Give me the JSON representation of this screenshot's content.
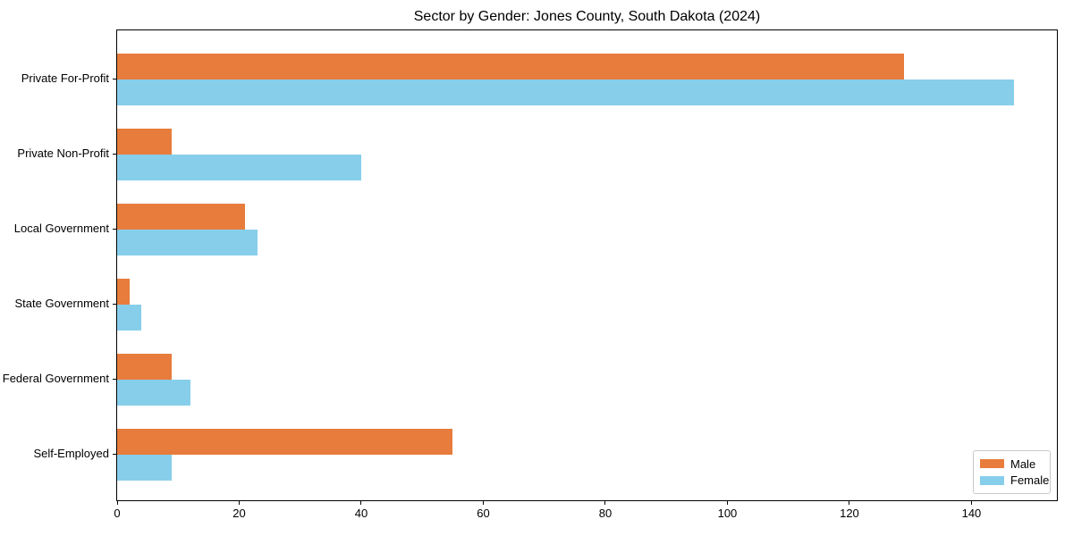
{
  "chart_data": {
    "type": "bar",
    "orientation": "horizontal",
    "title": "Sector by Gender: Jones County, South Dakota (2024)",
    "categories": [
      "Private For-Profit",
      "Private Non-Profit",
      "Local Government",
      "State Government",
      "Federal Government",
      "Self-Employed"
    ],
    "series": [
      {
        "name": "Male",
        "color": "#e77c3c",
        "values": [
          129,
          9,
          21,
          2,
          9,
          55
        ]
      },
      {
        "name": "Female",
        "color": "#87ceeb",
        "values": [
          147,
          40,
          23,
          4,
          12,
          9
        ]
      }
    ],
    "xlabel": "",
    "ylabel": "",
    "x_ticks": [
      0,
      20,
      40,
      60,
      80,
      100,
      120,
      140
    ],
    "xlim": [
      0,
      154
    ],
    "grid": false,
    "legend_position": "lower right",
    "background_color": "#ffffff",
    "spine_color": "#000000"
  }
}
